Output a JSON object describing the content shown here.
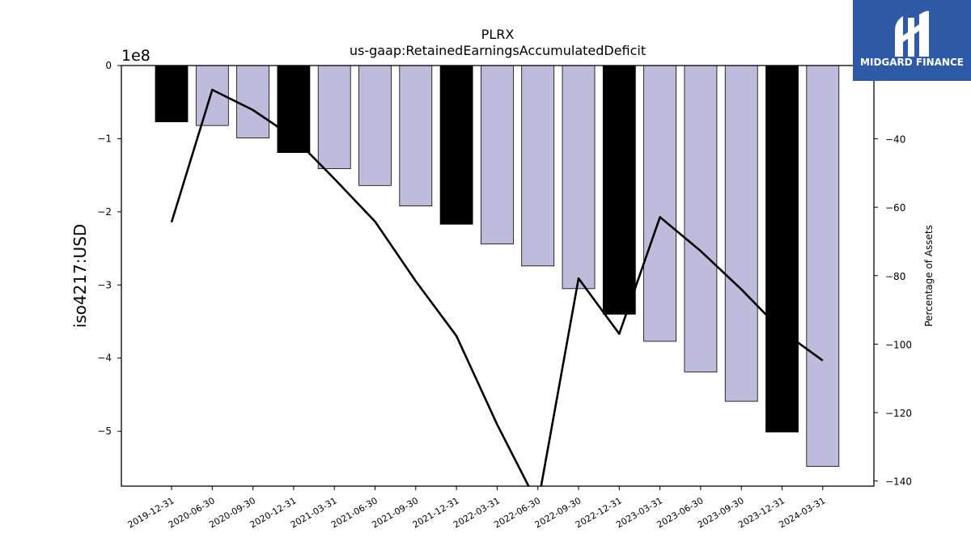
{
  "logo": {
    "text": "MIDGARD FINANCE",
    "bg_color": "#2e5aa8"
  },
  "chart_data": {
    "type": "bar",
    "title": "PLRX",
    "subtitle": "us-gaap:RetainedEarningsAccumulatedDeficit",
    "ylabel": "iso4217:USD",
    "ylabel_right": "Percentage of Assets",
    "y_offset_label": "1e8",
    "categories": [
      "2019-12-31",
      "2020-06-30",
      "2020-09-30",
      "2020-12-31",
      "2021-03-31",
      "2021-06-30",
      "2021-09-30",
      "2021-12-31",
      "2022-03-31",
      "2022-06-30",
      "2022-09-30",
      "2022-12-31",
      "2023-03-31",
      "2023-06-30",
      "2023-09-30",
      "2023-12-31",
      "2024-03-31"
    ],
    "series": [
      {
        "type": "bar",
        "axis": "left",
        "values": [
          -77000000,
          -82000000,
          -99000000,
          -119000000,
          -141000000,
          -164000000,
          -192000000,
          -217000000,
          -244000000,
          -274000000,
          -305000000,
          -340000000,
          -377000000,
          -419000000,
          -459000000,
          -501000000,
          -548000000
        ],
        "annual": [
          true,
          false,
          false,
          true,
          false,
          false,
          false,
          true,
          false,
          false,
          false,
          true,
          false,
          false,
          false,
          true,
          false
        ],
        "annual_color": "#000000",
        "quarter_color": "#bfbbdb"
      },
      {
        "type": "line",
        "axis": "right",
        "color": "#000000",
        "values": [
          -64.4,
          -25.7,
          -31.6,
          -39.6,
          -51.7,
          -64.2,
          -81.6,
          -97.6,
          -123.5,
          -146.8,
          -80.8,
          -97.0,
          -62.9,
          -72.8,
          -84.0,
          -96.2,
          -104.8
        ]
      }
    ],
    "ylim": [
      -575000000,
      0
    ],
    "yticks": [
      0,
      -100000000,
      -200000000,
      -300000000,
      -400000000,
      -500000000
    ],
    "ytick_labels": [
      "0",
      "−1",
      "−2",
      "−3",
      "−4",
      "−5"
    ],
    "ylim_right": [
      -141.5,
      -18.6
    ],
    "yticks_right": [
      -40,
      -60,
      -80,
      -100,
      -120,
      -140
    ],
    "ytick_labels_right": [
      "−40",
      "−60",
      "−80",
      "−100",
      "−120",
      "−140"
    ],
    "grid": false
  }
}
